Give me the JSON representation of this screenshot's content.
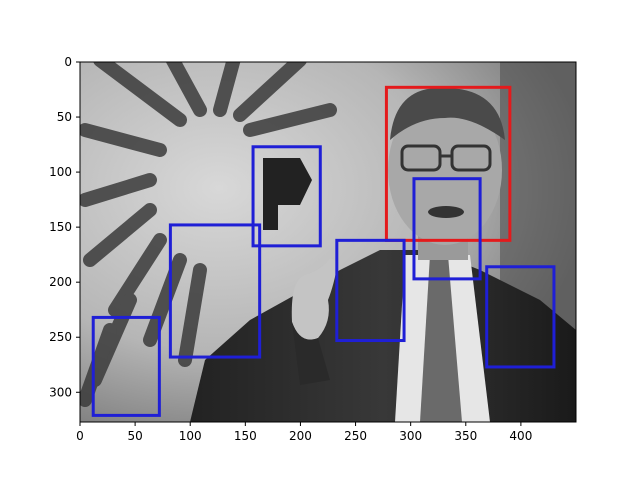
{
  "figure": {
    "image_description": "grayscale photo of a man in glasses and suit speaking, with a raised hand, in front of a large decorated banner",
    "image_extent": {
      "xlim": [
        0,
        450
      ],
      "ylim": [
        0,
        327
      ]
    },
    "x_ticks": [
      "0",
      "50",
      "100",
      "150",
      "200",
      "250",
      "300",
      "350",
      "400"
    ],
    "y_ticks": [
      "0",
      "50",
      "100",
      "150",
      "200",
      "250",
      "300"
    ],
    "colors": {
      "face_box": "#e41a1c",
      "other_box": "#1f1fd6",
      "axis": "#000000",
      "background": "#ffffff"
    }
  },
  "boxes": [
    {
      "kind": "face",
      "x0": 278,
      "y0": 23,
      "x1": 390,
      "y1": 162
    },
    {
      "kind": "other",
      "x0": 157,
      "y0": 77,
      "x1": 218,
      "y1": 167
    },
    {
      "kind": "other",
      "x0": 303,
      "y0": 106,
      "x1": 363,
      "y1": 197
    },
    {
      "kind": "other",
      "x0": 82,
      "y0": 148,
      "x1": 163,
      "y1": 268
    },
    {
      "kind": "other",
      "x0": 233,
      "y0": 162,
      "x1": 294,
      "y1": 253
    },
    {
      "kind": "other",
      "x0": 369,
      "y0": 186,
      "x1": 430,
      "y1": 277
    },
    {
      "kind": "other",
      "x0": 12,
      "y0": 232,
      "x1": 72,
      "y1": 321
    }
  ]
}
